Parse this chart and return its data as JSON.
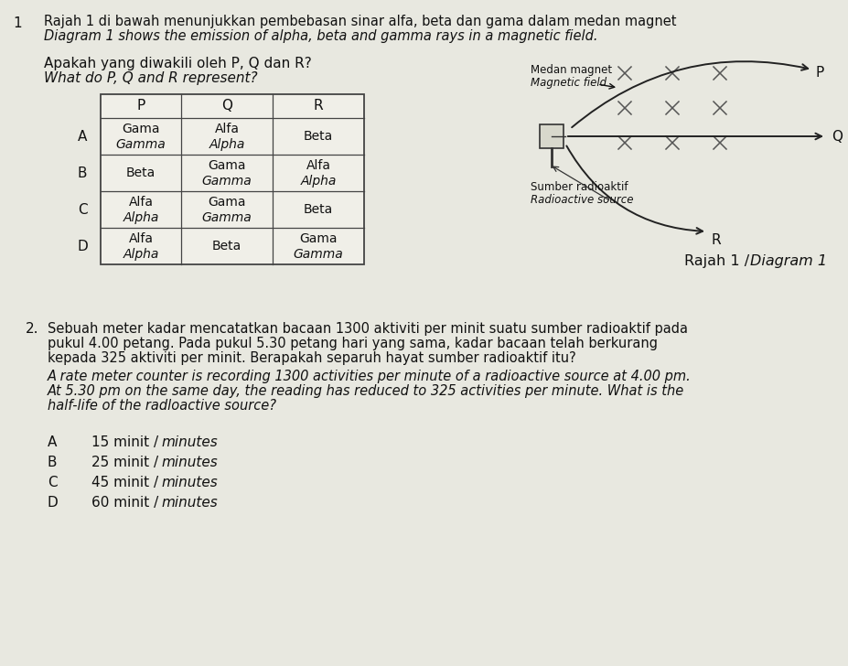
{
  "q1_number": "1",
  "q1_line1_malay": "Rajah 1 di bawah menunjukkan pembebasan sinar alfa, beta dan gama dalam medan magnet",
  "q1_line1_english": "Diagram 1 shows the emission of alpha, beta and gamma rays in a magnetic field.",
  "q1_question_malay": "Apakah yang diwakili oleh P, Q dan R?",
  "q1_question_english": "What do P, Q and R represent?",
  "table_headers": [
    "P",
    "Q",
    "R"
  ],
  "table_data": [
    [
      "Gama|Gamma",
      "Alfa|Alpha",
      "Beta"
    ],
    [
      "Beta",
      "Gama|Gamma",
      "Alfa|Alpha"
    ],
    [
      "Alfa|Alpha",
      "Gama|Gamma",
      "Beta"
    ],
    [
      "Alfa|Alpha",
      "Beta",
      "Gama|Gamma"
    ]
  ],
  "row_labels": [
    "A",
    "B",
    "C",
    "D"
  ],
  "diagram_label_malay": "Medan magnet",
  "diagram_label_eng": "Magnetic field",
  "diagram_source_malay": "Sumber radioaktif",
  "diagram_source_eng": "Radioactive source",
  "diagram_caption_malay": "Rajah 1",
  "diagram_caption_eng": "Diagram 1",
  "diagram_P": "P",
  "diagram_Q": "Q",
  "diagram_R": "R",
  "q2_number": "2.",
  "q2_malay_lines": [
    "Sebuah meter kadar mencatatkan bacaan 1300 aktiviti per minit suatu sumber radioaktif pada",
    "pukul 4.00 petang. Pada pukul 5.30 petang hari yang sama, kadar bacaan telah berkurang",
    "kepada 325 aktiviti per minit. Berapakah separuh hayat sumber radioaktif itu?"
  ],
  "q2_eng_lines": [
    "A rate meter counter is recording 1300 activities per minute of a radioactive source at 4.00 pm.",
    "At 5.30 pm on the same day, the reading has reduced to 325 activities per minute. What is the",
    "half-life of the radloactive source?"
  ],
  "q2_options": [
    [
      "A",
      "15 minit",
      "minutes"
    ],
    [
      "B",
      "25 minit",
      "minutes"
    ],
    [
      "C",
      "45 minit",
      "minutes"
    ],
    [
      "D",
      "60 minit",
      "minutes"
    ]
  ],
  "bg_color": "#e8e8e0",
  "text_color": "#111111",
  "border_color": "#444444"
}
